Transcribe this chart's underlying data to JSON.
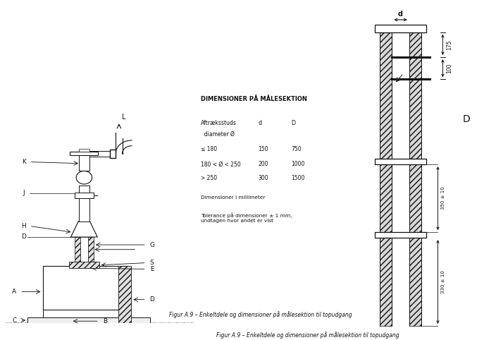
{
  "title": "Figur A.9 – Enkeltdele og dimensioner på målesektion til topudgang",
  "bg_color": "#ffffff",
  "table_title": "DIMENSIONER PÅ MÅLESEKTION",
  "table_col1": "Aftræksstuds\n  diameter Ø",
  "table_col2": "d",
  "table_col3": "D",
  "table_rows": [
    [
      "≤ 180",
      "150",
      "750"
    ],
    [
      "180 < Ø < 250",
      "200",
      "1000"
    ],
    [
      "> 250",
      "300",
      "1500"
    ]
  ],
  "table_note1": "Dimensioner i millimeter",
  "table_note2": "Tolerance på dimensioner ± 1 mm,\nundtagen hvor andet er vist",
  "caption": "Figur A.9 – Enkeltdele og dimensioner på målesektion til topudgang"
}
